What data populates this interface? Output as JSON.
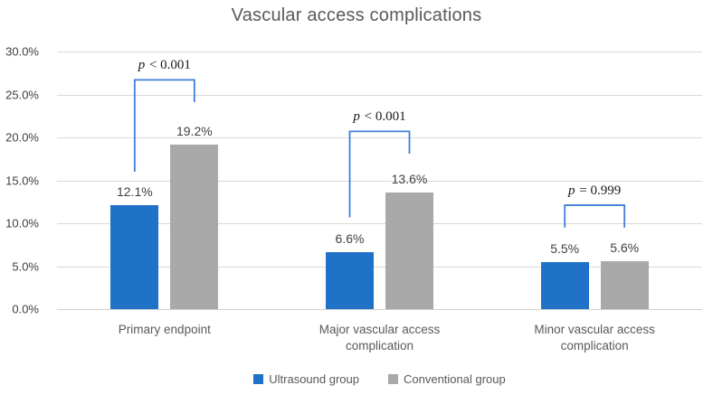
{
  "title": "Vascular access complications",
  "chart_data": {
    "type": "bar",
    "title": "Vascular access complications",
    "categories": [
      "Primary endpoint",
      "Major vascular access complication",
      "Minor vascular access complication"
    ],
    "series": [
      {
        "name": "Ultrasound group",
        "color": "#1f72c8",
        "values": [
          12.1,
          6.6,
          5.5
        ]
      },
      {
        "name": "Conventional group",
        "color": "#a9a9a9",
        "values": [
          19.2,
          13.6,
          5.6
        ]
      }
    ],
    "value_label_format": "percent_one_decimal",
    "yticks": [
      "0.0%",
      "5.0%",
      "10.0%",
      "15.0%",
      "20.0%",
      "25.0%",
      "30.0%"
    ],
    "ylim": [
      0,
      30
    ],
    "grid": true,
    "legend_position": "bottom",
    "annotations": [
      {
        "label": "p < 0.001",
        "group": 0,
        "top_pct": 26.7,
        "leg_end_pct": [
          16.0,
          24.1
        ],
        "color": "#3f7fd9"
      },
      {
        "label": "p < 0.001",
        "group": 1,
        "top_pct": 20.7,
        "leg_end_pct": [
          10.7,
          18.1
        ],
        "color": "#3f7fd9"
      },
      {
        "label": "p = 0.999",
        "group": 2,
        "top_pct": 12.1,
        "leg_end_pct": [
          9.5,
          9.5
        ],
        "color": "#3f7fd9"
      }
    ]
  },
  "colors": {
    "title_text": "#595959",
    "axis_text": "#404040",
    "gridline": "#d9d9d9",
    "bar_blue": "#1f72c8",
    "bar_gray": "#a9a9a9",
    "bracket_blue": "#3f7fd9"
  }
}
